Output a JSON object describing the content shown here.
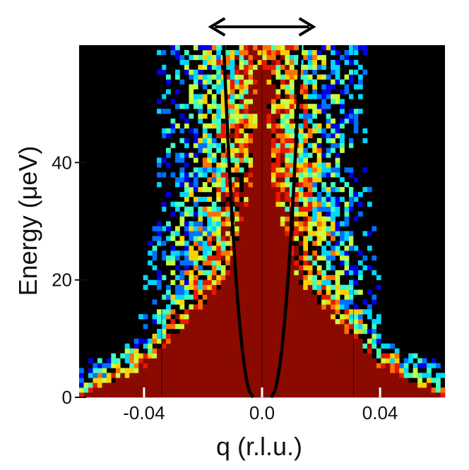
{
  "chart_data": {
    "type": "heatmap",
    "title": "",
    "xlabel": "q (r.l.u.)",
    "ylabel": "Energy (μeV)",
    "xlim": [
      -0.062,
      0.062
    ],
    "ylim": [
      0,
      60
    ],
    "xticks": [
      {
        "value": -0.04,
        "label": "-0.04"
      },
      {
        "value": 0.0,
        "label": "0.0"
      },
      {
        "value": 0.04,
        "label": "0.04"
      }
    ],
    "yticks": [
      {
        "value": 0,
        "label": "0"
      },
      {
        "value": 20,
        "label": "20"
      },
      {
        "value": 40,
        "label": "40"
      }
    ],
    "colormap": [
      "#000000",
      "#0000e8",
      "#0070ff",
      "#00d8ff",
      "#40ffc0",
      "#c8ff40",
      "#ffd000",
      "#ff7000",
      "#e81800",
      "#8b0a00"
    ],
    "background": "#000000",
    "saturated_color": "#8b0a00",
    "intensity_profile": {
      "center": 0.0,
      "bright_halfwidth_at_energy": [
        {
          "energy": 0,
          "halfwidth": 0.062
        },
        {
          "energy": 5,
          "halfwidth": 0.04
        },
        {
          "energy": 20,
          "halfwidth": 0.012
        },
        {
          "energy": 35,
          "halfwidth": 0.004
        },
        {
          "energy": 60,
          "halfwidth": 0.0
        }
      ],
      "signal_halfwidth_at_energy": [
        {
          "energy": 0,
          "halfwidth": 0.062
        },
        {
          "energy": 5,
          "halfwidth": 0.058
        },
        {
          "energy": 10,
          "halfwidth": 0.036
        },
        {
          "energy": 40,
          "halfwidth": 0.03
        },
        {
          "energy": 60,
          "halfwidth": 0.03
        }
      ]
    },
    "dispersion_curves": [
      {
        "type": "parabola",
        "vertex": [
          -0.003,
          0
        ],
        "energy_at_top": 60,
        "q_at_top": -0.013
      },
      {
        "type": "parabola",
        "vertex": [
          0.003,
          0
        ],
        "energy_at_top": 60,
        "q_at_top": 0.013
      }
    ],
    "reference_lines_q": [
      -0.034,
      0.0,
      0.031
    ],
    "arrow": {
      "from_q": -0.015,
      "to_q": 0.015,
      "style": "double-headed"
    }
  }
}
